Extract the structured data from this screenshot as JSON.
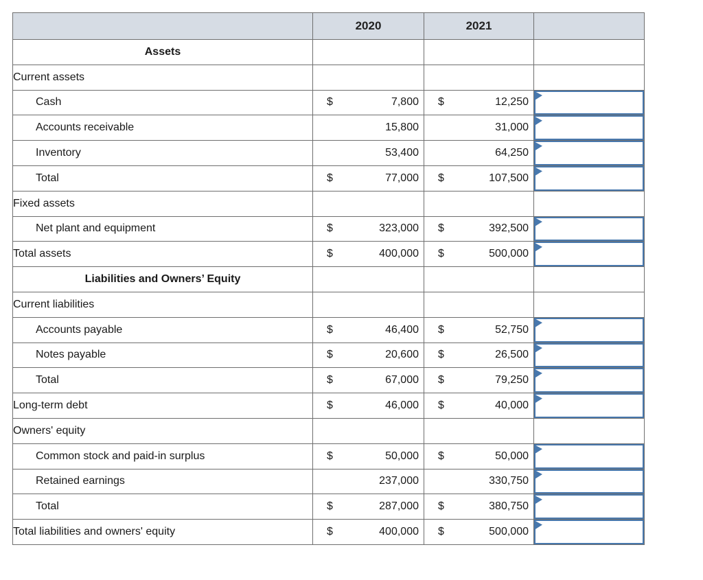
{
  "table": {
    "header": {
      "col_label": "",
      "col_2020": "2020",
      "col_2021": "2021",
      "col_input": ""
    },
    "colors": {
      "header_bg": "#d6dce4",
      "grid": "#6e6e6e",
      "strong_line": "#000000",
      "input_border": "#4878ad",
      "flag": "#4878ad"
    },
    "rows": [
      {
        "label": "Assets",
        "title": true
      },
      {
        "label": "Current assets"
      },
      {
        "label": "Cash",
        "indent": true,
        "d2020": "$",
        "v2020": "7,800",
        "d2021": "$",
        "v2021": "12,250",
        "input": true
      },
      {
        "label": "Accounts receivable",
        "indent": true,
        "v2020": "15,800",
        "v2021": "31,000",
        "input": true
      },
      {
        "label": "Inventory",
        "indent": true,
        "v2020": "53,400",
        "v2021": "64,250",
        "input": true
      },
      {
        "label": "Total",
        "indent": true,
        "d2020": "$",
        "v2020": "77,000",
        "d2021": "$",
        "v2021": "107,500",
        "input": true,
        "thick_top": true
      },
      {
        "label": "Fixed assets"
      },
      {
        "label": "Net plant and equipment",
        "indent": true,
        "d2020": "$",
        "v2020": "323,000",
        "d2021": "$",
        "v2021": "392,500",
        "input": true
      },
      {
        "label": "Total assets",
        "d2020": "$",
        "v2020": "400,000",
        "d2021": "$",
        "v2021": "500,000",
        "input": true,
        "thick_top": true,
        "double_bottom": true
      },
      {
        "label": "Liabilities and Owners’ Equity",
        "title": true
      },
      {
        "label": "Current liabilities"
      },
      {
        "label": "Accounts payable",
        "indent": true,
        "d2020": "$",
        "v2020": "46,400",
        "d2021": "$",
        "v2021": "52,750",
        "input": true
      },
      {
        "label": "Notes payable",
        "indent": true,
        "d2020": "$",
        "v2020": "20,600",
        "d2021": "$",
        "v2021": "26,500",
        "input": true
      },
      {
        "label": "Total",
        "indent": true,
        "d2020": "$",
        "v2020": "67,000",
        "d2021": "$",
        "v2021": "79,250",
        "input": true,
        "thick_top": true
      },
      {
        "label": "Long-term debt",
        "d2020": "$",
        "v2020": "46,000",
        "d2021": "$",
        "v2021": "40,000",
        "input": true,
        "thick_top": true,
        "thick_bottom": true
      },
      {
        "label": "Owners' equity"
      },
      {
        "label": "Common stock and paid-in surplus",
        "indent": true,
        "d2020": "$",
        "v2020": "50,000",
        "d2021": "$",
        "v2021": "50,000",
        "input": true
      },
      {
        "label": "Retained earnings",
        "indent": true,
        "v2020": "237,000",
        "v2021": "330,750",
        "input": true
      },
      {
        "label": "Total",
        "indent": true,
        "d2020": "$",
        "v2020": "287,000",
        "d2021": "$",
        "v2021": "380,750",
        "input": true,
        "thick_top": true
      },
      {
        "label": "Total liabilities and owners' equity",
        "d2020": "$",
        "v2020": "400,000",
        "d2021": "$",
        "v2021": "500,000",
        "input": true,
        "thick_top": true,
        "double_bottom": true
      }
    ]
  }
}
